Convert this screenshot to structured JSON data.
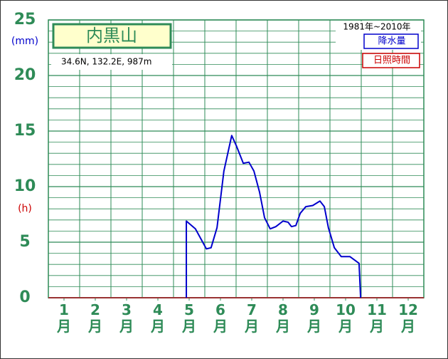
{
  "chart_data": {
    "type": "line",
    "title": "内黒山",
    "subtitle": "34.6N, 132.2E, 987m",
    "period": "1981年~2010年",
    "y_label": "(mm)",
    "y2_label": "(h)",
    "legend": [
      "降水量",
      "日照時間"
    ],
    "xlim": [
      0.5,
      12.5
    ],
    "xticks": [
      {
        "value": 1,
        "label": "1月"
      },
      {
        "value": 2,
        "label": "2月"
      },
      {
        "value": 3,
        "label": "3月"
      },
      {
        "value": 4,
        "label": "4月"
      },
      {
        "value": 5,
        "label": "5月"
      },
      {
        "value": 6,
        "label": "6月"
      },
      {
        "value": 7,
        "label": "7月"
      },
      {
        "value": 8,
        "label": "8月"
      },
      {
        "value": 9,
        "label": "9月"
      },
      {
        "value": 10,
        "label": "10月"
      },
      {
        "value": 11,
        "label": "11月"
      },
      {
        "value": 12,
        "label": "12月"
      }
    ],
    "ylim": [
      0,
      25
    ],
    "yticks": [
      0,
      5,
      10,
      15,
      20,
      25
    ],
    "yminorticks": [
      1,
      2,
      3,
      4,
      6,
      7,
      8,
      9,
      11,
      12,
      13,
      14,
      16,
      17,
      18,
      19,
      21,
      22,
      23,
      24
    ],
    "grid": true,
    "series": [
      {
        "name": "降水量",
        "color": "#0000cc",
        "x": [
          4.91,
          4.91,
          5.2,
          5.55,
          5.7,
          5.89,
          6.11,
          6.36,
          6.52,
          6.73,
          6.91,
          7.07,
          7.25,
          7.41,
          7.59,
          7.77,
          8.0,
          8.16,
          8.27,
          8.41,
          8.55,
          8.73,
          8.95,
          9.18,
          9.32,
          9.45,
          9.64,
          9.86,
          10.14,
          10.43,
          10.48
        ],
        "values": [
          0,
          6.9,
          6.2,
          4.4,
          4.5,
          6.3,
          11.4,
          14.6,
          13.6,
          12.1,
          12.2,
          11.4,
          9.5,
          7.2,
          6.2,
          6.4,
          6.9,
          6.8,
          6.4,
          6.5,
          7.6,
          8.2,
          8.3,
          8.7,
          8.2,
          6.3,
          4.5,
          3.7,
          3.7,
          3.1,
          0
        ]
      },
      {
        "name": "日照時間",
        "color": "#cc0000"
      }
    ]
  }
}
